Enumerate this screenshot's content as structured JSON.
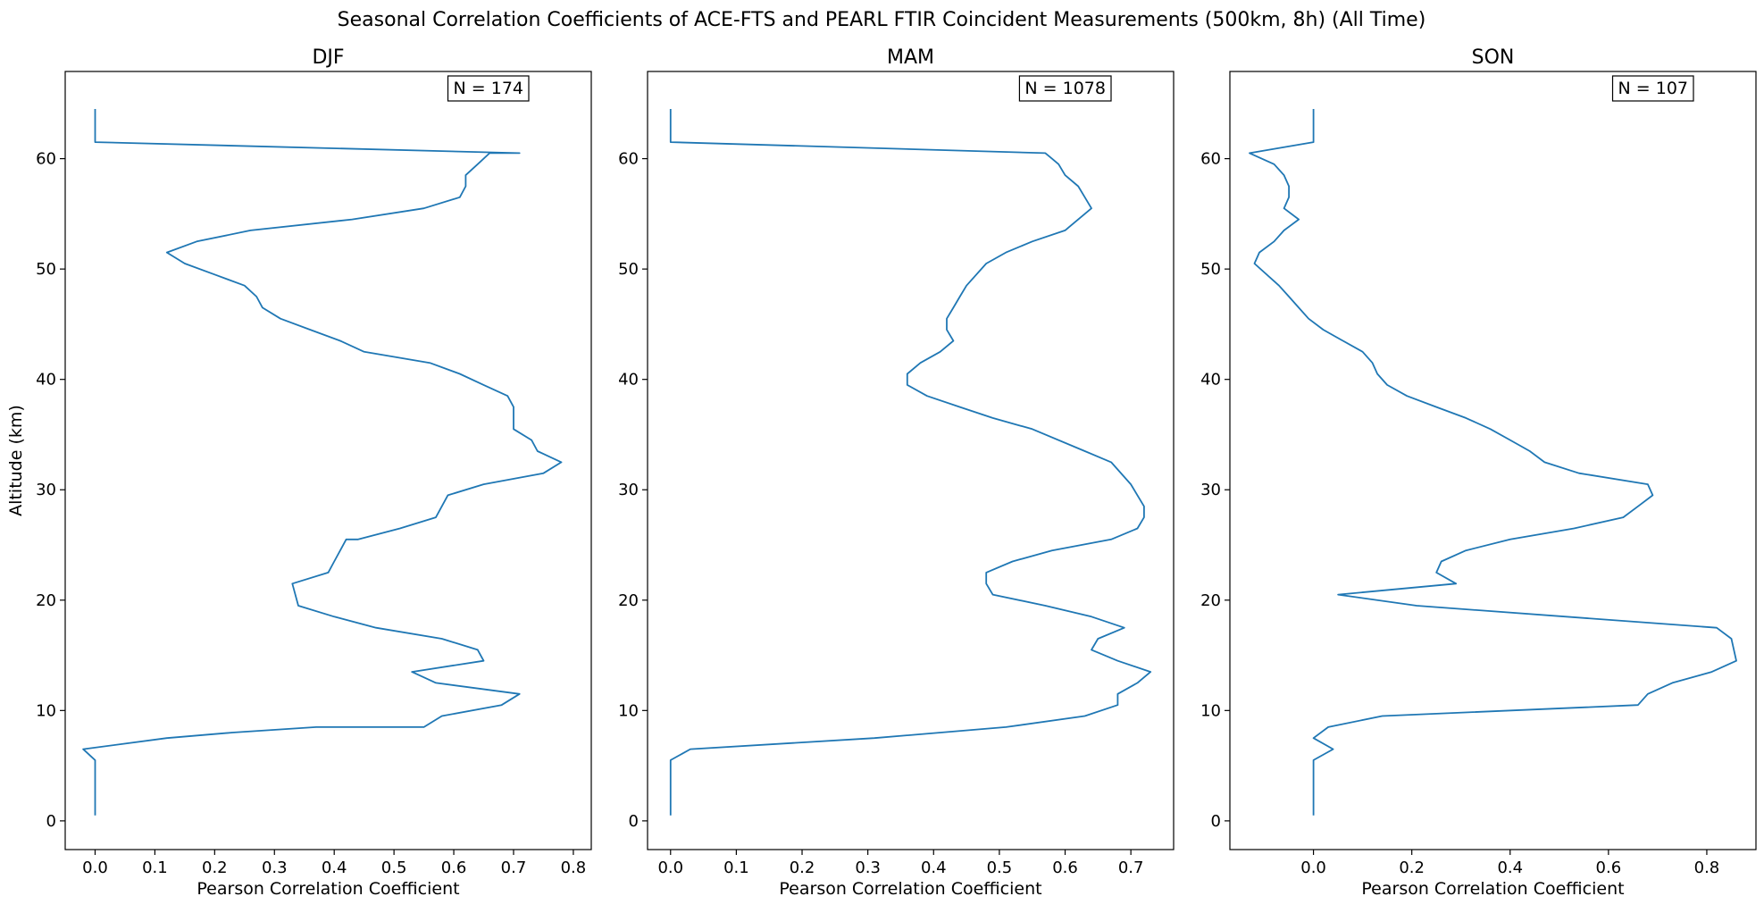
{
  "suptitle": "Seasonal Correlation Coefficients of ACE-FTS and PEARL FTIR Coincident Measurements (500km, 8h) (All Time)",
  "line_color": "#1f77b4",
  "chart_data": [
    {
      "type": "line",
      "title": "DJF",
      "xlabel": "Pearson Correlation Coefficient",
      "ylabel": "Altitude (km)",
      "annotation": "N = 174",
      "annotation_position": "top-right",
      "grid": false,
      "xlim": [
        -0.05,
        0.83
      ],
      "ylim": [
        -2.6,
        67.9
      ],
      "xticks": [
        0.0,
        0.1,
        0.2,
        0.3,
        0.4,
        0.5,
        0.6,
        0.7,
        0.8
      ],
      "xtick_labels": [
        "0.0",
        "0.1",
        "0.2",
        "0.3",
        "0.4",
        "0.5",
        "0.6",
        "0.7",
        "0.8"
      ],
      "yticks": [
        0,
        10,
        20,
        30,
        40,
        50,
        60
      ],
      "ytick_labels": [
        "0",
        "10",
        "20",
        "30",
        "40",
        "50",
        "60"
      ],
      "series": [
        {
          "x": [
            0.0,
            0.0,
            -0.02,
            0.12,
            0.23,
            0.37,
            0.44,
            0.55,
            0.58,
            0.68,
            0.71,
            0.57,
            0.53,
            0.65,
            0.64,
            0.58,
            0.47,
            0.4,
            0.34,
            0.33,
            0.39,
            0.4,
            0.41,
            0.42,
            0.44,
            0.51,
            0.57,
            0.59,
            0.65,
            0.75,
            0.78,
            0.74,
            0.73,
            0.7,
            0.7,
            0.69,
            0.65,
            0.61,
            0.56,
            0.45,
            0.41,
            0.36,
            0.31,
            0.28,
            0.27,
            0.25,
            0.2,
            0.15,
            0.12,
            0.17,
            0.26,
            0.43,
            0.55,
            0.61,
            0.62,
            0.62,
            0.64,
            0.66,
            0.71,
            0.0,
            0.0
          ],
          "y": [
            0.5,
            5.5,
            6.5,
            7.5,
            8.0,
            8.5,
            8.5,
            8.5,
            9.5,
            10.5,
            11.5,
            12.5,
            13.5,
            14.5,
            15.5,
            16.5,
            17.5,
            18.5,
            19.5,
            21.5,
            22.5,
            23.5,
            24.5,
            25.5,
            25.5,
            26.5,
            27.5,
            29.5,
            30.5,
            31.5,
            32.5,
            33.5,
            34.5,
            35.5,
            37.5,
            38.5,
            39.5,
            40.5,
            41.5,
            42.5,
            43.5,
            44.5,
            45.5,
            46.5,
            47.5,
            48.5,
            49.5,
            50.5,
            51.5,
            52.5,
            53.5,
            54.5,
            55.5,
            56.5,
            57.5,
            58.5,
            59.5,
            60.5,
            60.5,
            61.5,
            64.5
          ]
        }
      ]
    },
    {
      "type": "line",
      "title": "MAM",
      "xlabel": "Pearson Correlation Coefficient",
      "ylabel": "",
      "annotation": "N = 1078",
      "annotation_position": "top-right",
      "grid": false,
      "xlim": [
        -0.035,
        0.765
      ],
      "ylim": [
        -2.6,
        67.9
      ],
      "xticks": [
        0.0,
        0.1,
        0.2,
        0.3,
        0.4,
        0.5,
        0.6,
        0.7
      ],
      "xtick_labels": [
        "0.0",
        "0.1",
        "0.2",
        "0.3",
        "0.4",
        "0.5",
        "0.6",
        "0.7"
      ],
      "yticks": [
        0,
        10,
        20,
        30,
        40,
        50,
        60
      ],
      "ytick_labels": [
        "0",
        "10",
        "20",
        "30",
        "40",
        "50",
        "60"
      ],
      "series": [
        {
          "x": [
            0.0,
            0.0,
            0.03,
            0.31,
            0.51,
            0.63,
            0.68,
            0.68,
            0.71,
            0.73,
            0.68,
            0.64,
            0.65,
            0.69,
            0.64,
            0.57,
            0.49,
            0.48,
            0.48,
            0.52,
            0.58,
            0.67,
            0.71,
            0.72,
            0.72,
            0.7,
            0.67,
            0.63,
            0.55,
            0.49,
            0.44,
            0.39,
            0.36,
            0.36,
            0.38,
            0.41,
            0.43,
            0.42,
            0.42,
            0.43,
            0.44,
            0.45,
            0.48,
            0.51,
            0.55,
            0.6,
            0.64,
            0.63,
            0.62,
            0.6,
            0.59,
            0.58,
            0.57,
            0.0,
            0.0
          ],
          "y": [
            0.5,
            5.5,
            6.5,
            7.5,
            8.5,
            9.5,
            10.5,
            11.5,
            12.5,
            13.5,
            14.5,
            15.5,
            16.5,
            17.5,
            18.5,
            19.5,
            20.5,
            21.5,
            22.5,
            23.5,
            24.5,
            25.5,
            26.5,
            27.5,
            28.5,
            30.5,
            32.5,
            33.5,
            35.5,
            36.5,
            37.5,
            38.5,
            39.5,
            40.5,
            41.5,
            42.5,
            43.5,
            44.5,
            45.5,
            46.5,
            47.5,
            48.5,
            50.5,
            51.5,
            52.5,
            53.5,
            55.5,
            56.5,
            57.5,
            58.5,
            59.5,
            60.0,
            60.5,
            61.5,
            64.5
          ]
        }
      ]
    },
    {
      "type": "line",
      "title": "SON",
      "xlabel": "Pearson Correlation Coefficient",
      "ylabel": "",
      "annotation": "N = 107",
      "annotation_position": "top-right",
      "grid": false,
      "xlim": [
        -0.17,
        0.9
      ],
      "ylim": [
        -2.6,
        67.9
      ],
      "xticks": [
        0.0,
        0.2,
        0.4,
        0.6,
        0.8
      ],
      "xtick_labels": [
        "0.0",
        "0.2",
        "0.4",
        "0.6",
        "0.8"
      ],
      "yticks": [
        0,
        10,
        20,
        30,
        40,
        50,
        60
      ],
      "ytick_labels": [
        "0",
        "10",
        "20",
        "30",
        "40",
        "50",
        "60"
      ],
      "series": [
        {
          "x": [
            0.0,
            0.0,
            0.04,
            0.0,
            0.03,
            0.14,
            0.66,
            0.68,
            0.73,
            0.81,
            0.86,
            0.85,
            0.82,
            0.21,
            0.05,
            0.29,
            0.25,
            0.26,
            0.31,
            0.4,
            0.53,
            0.63,
            0.66,
            0.69,
            0.68,
            0.54,
            0.47,
            0.44,
            0.4,
            0.36,
            0.31,
            0.25,
            0.19,
            0.15,
            0.13,
            0.12,
            0.1,
            0.06,
            0.02,
            -0.01,
            -0.03,
            -0.05,
            -0.07,
            -0.12,
            -0.11,
            -0.08,
            -0.06,
            -0.03,
            -0.06,
            -0.05,
            -0.05,
            -0.06,
            -0.08,
            -0.13,
            0.0,
            0.0
          ],
          "y": [
            0.5,
            5.5,
            6.5,
            7.5,
            8.5,
            9.5,
            10.5,
            11.5,
            12.5,
            13.5,
            14.5,
            16.5,
            17.5,
            19.5,
            20.5,
            21.5,
            22.5,
            23.5,
            24.5,
            25.5,
            26.5,
            27.5,
            28.5,
            29.5,
            30.5,
            31.5,
            32.5,
            33.5,
            34.5,
            35.5,
            36.5,
            37.5,
            38.5,
            39.5,
            40.5,
            41.5,
            42.5,
            43.5,
            44.5,
            45.5,
            46.5,
            47.5,
            48.5,
            50.5,
            51.5,
            52.5,
            53.5,
            54.5,
            55.5,
            56.5,
            57.5,
            58.5,
            59.5,
            60.5,
            61.5,
            64.5
          ]
        }
      ]
    }
  ]
}
